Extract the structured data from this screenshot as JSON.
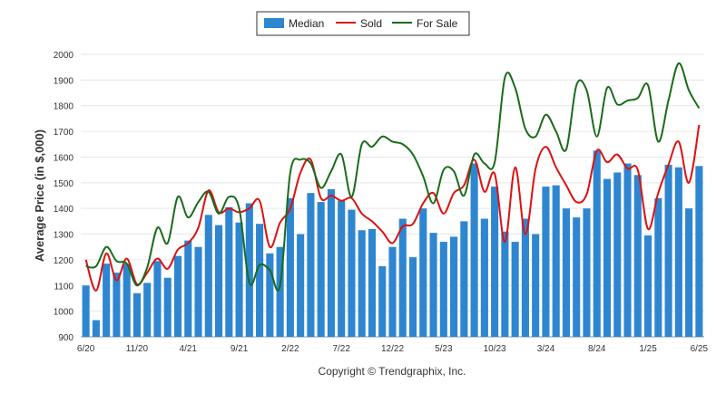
{
  "chart_data": {
    "type": "bar",
    "ylabel": "Average Price (in $,000)",
    "ylim": [
      900,
      2000
    ],
    "yticks": [
      900,
      1000,
      1100,
      1200,
      1300,
      1400,
      1500,
      1600,
      1700,
      1800,
      1900,
      2000
    ],
    "grid": true,
    "legend_position": "top-center",
    "x_tick_labels": [
      "6/20",
      "11/20",
      "4/21",
      "9/21",
      "2/22",
      "7/22",
      "12/22",
      "5/23",
      "10/23",
      "3/24",
      "8/24",
      "1/25",
      "6/25"
    ],
    "categories": [
      "6/20",
      "7/20",
      "8/20",
      "9/20",
      "10/20",
      "11/20",
      "12/20",
      "1/21",
      "2/21",
      "3/21",
      "4/21",
      "5/21",
      "6/21",
      "7/21",
      "8/21",
      "9/21",
      "10/21",
      "11/21",
      "12/21",
      "1/22",
      "2/22",
      "3/22",
      "4/22",
      "5/22",
      "6/22",
      "7/22",
      "8/22",
      "9/22",
      "10/22",
      "11/22",
      "12/22",
      "1/23",
      "2/23",
      "3/23",
      "4/23",
      "5/23",
      "6/23",
      "7/23",
      "8/23",
      "9/23",
      "10/23",
      "11/23",
      "12/23",
      "1/24",
      "2/24",
      "3/24",
      "4/24",
      "5/24",
      "6/24",
      "7/24",
      "8/24",
      "9/24",
      "10/24",
      "11/24",
      "12/24",
      "1/25",
      "2/25",
      "3/25",
      "4/25",
      "5/25",
      "6/25"
    ],
    "series": [
      {
        "name": "Median",
        "kind": "bar",
        "color": "#2e86d1",
        "values": [
          1100,
          965,
          1185,
          1150,
          1185,
          1070,
          1110,
          1195,
          1130,
          1215,
          1275,
          1250,
          1375,
          1335,
          1405,
          1345,
          1420,
          1340,
          1225,
          1250,
          1440,
          1300,
          1460,
          1425,
          1475,
          1430,
          1395,
          1315,
          1320,
          1175,
          1250,
          1360,
          1210,
          1400,
          1305,
          1270,
          1290,
          1350,
          1575,
          1360,
          1485,
          1310,
          1270,
          1360,
          1300,
          1485,
          1490,
          1400,
          1365,
          1400,
          1625,
          1515,
          1540,
          1575,
          1530,
          1295,
          1440,
          1570,
          1560,
          1400,
          1565
        ]
      },
      {
        "name": "Sold",
        "kind": "line",
        "color": "#dd1111",
        "values": [
          1200,
          1080,
          1225,
          1120,
          1205,
          1105,
          1150,
          1205,
          1165,
          1240,
          1265,
          1325,
          1470,
          1385,
          1400,
          1385,
          1400,
          1430,
          1250,
          1345,
          1400,
          1540,
          1590,
          1440,
          1450,
          1430,
          1440,
          1380,
          1350,
          1310,
          1265,
          1330,
          1340,
          1420,
          1460,
          1380,
          1460,
          1490,
          1590,
          1465,
          1535,
          1270,
          1560,
          1300,
          1555,
          1640,
          1560,
          1490,
          1425,
          1455,
          1625,
          1580,
          1610,
          1555,
          1550,
          1320,
          1460,
          1570,
          1660,
          1500,
          1725
        ]
      },
      {
        "name": "For Sale",
        "kind": "line",
        "color": "#1a6b1a",
        "values": [
          1175,
          1175,
          1250,
          1195,
          1185,
          1100,
          1170,
          1325,
          1265,
          1445,
          1365,
          1425,
          1465,
          1380,
          1445,
          1400,
          1110,
          1180,
          1160,
          1100,
          1540,
          1590,
          1575,
          1480,
          1545,
          1610,
          1445,
          1650,
          1640,
          1680,
          1660,
          1650,
          1610,
          1525,
          1420,
          1550,
          1545,
          1450,
          1610,
          1575,
          1580,
          1910,
          1870,
          1710,
          1680,
          1765,
          1700,
          1630,
          1880,
          1860,
          1680,
          1870,
          1805,
          1820,
          1830,
          1880,
          1660,
          1820,
          1965,
          1860,
          1790
        ]
      }
    ]
  },
  "copyright": "Copyright © Trendgraphix, Inc."
}
